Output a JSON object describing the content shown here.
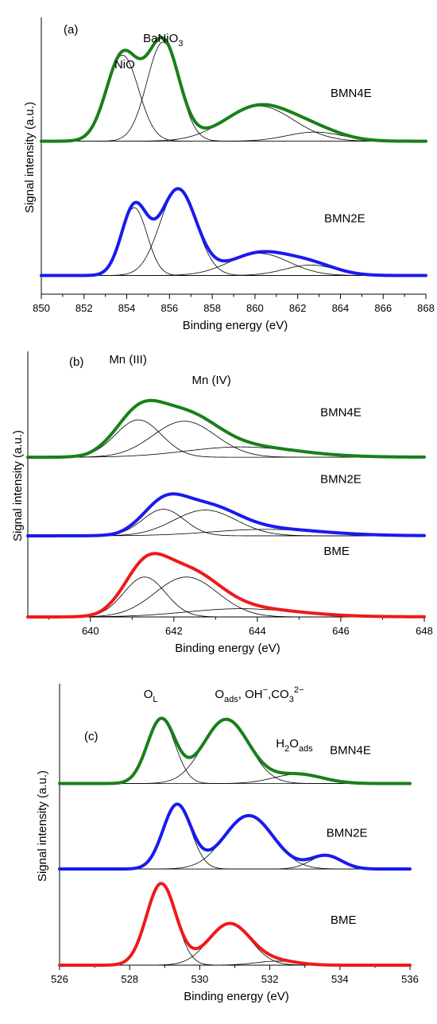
{
  "colors": {
    "BMN4E": "#1a7f1a",
    "BMN2E": "#1a1aee",
    "BME": "#ee1a1a"
  },
  "chart_data": [
    {
      "type": "line",
      "panel_label": "(a)",
      "xlabel": "Binding energy (eV)",
      "ylabel": "Signal intensity (a.u.)",
      "xlim": [
        850,
        868
      ],
      "xticks": [
        850,
        852,
        854,
        856,
        858,
        860,
        862,
        864,
        866,
        868
      ],
      "xtick_labels": [
        "850",
        "852",
        "854",
        "856",
        "858",
        "860",
        "862",
        "864",
        "866",
        "868"
      ],
      "ylim": [
        0,
        1
      ],
      "annotations": [
        {
          "text": "NiO",
          "x": 853.9,
          "y": 0.83
        },
        {
          "text": "BaNiO",
          "sub": "3",
          "x": 855.7,
          "y": 0.93
        }
      ],
      "series": [
        {
          "name": "BMN4E",
          "color": "#1a7f1a",
          "baseline": 0.55,
          "label_pos": {
            "x": 864.5,
            "y": 0.72
          },
          "components": [
            {
              "center": 853.8,
              "height": 0.33,
              "width": 0.75
            },
            {
              "center": 855.7,
              "height": 0.38,
              "width": 0.75
            },
            {
              "center": 860.2,
              "height": 0.135,
              "width": 1.6
            },
            {
              "center": 862.8,
              "height": 0.035,
              "width": 1.3
            }
          ]
        },
        {
          "name": "BMN2E",
          "color": "#1a1aee",
          "baseline": 0.035,
          "label_pos": {
            "x": 864.2,
            "y": 0.24
          },
          "components": [
            {
              "center": 854.35,
              "height": 0.26,
              "width": 0.6
            },
            {
              "center": 856.4,
              "height": 0.33,
              "width": 0.85
            },
            {
              "center": 860.2,
              "height": 0.085,
              "width": 1.4
            },
            {
              "center": 862.6,
              "height": 0.04,
              "width": 1.2
            }
          ]
        }
      ]
    },
    {
      "type": "line",
      "panel_label": "(b)",
      "xlabel": "Binding energy (eV)",
      "ylabel": "Signal intensity (a.u.)",
      "xlim": [
        638.5,
        648
      ],
      "xticks": [
        640,
        642,
        644,
        646,
        648
      ],
      "xtick_labels": [
        "640",
        "642",
        "644",
        "646",
        "648"
      ],
      "ylim": [
        0,
        1
      ],
      "annotations": [
        {
          "text": "Mn (III)",
          "x": 640.9,
          "y": 0.985
        },
        {
          "text": "Mn (IV)",
          "x": 642.9,
          "y": 0.905
        }
      ],
      "series": [
        {
          "name": "BMN4E",
          "color": "#1a7f1a",
          "baseline": 0.62,
          "label_pos": {
            "x": 646.0,
            "y": 0.78
          },
          "components": [
            {
              "center": 641.15,
              "height": 0.145,
              "width": 0.55
            },
            {
              "center": 642.25,
              "height": 0.14,
              "width": 0.75
            },
            {
              "center": 643.6,
              "height": 0.04,
              "width": 1.3
            }
          ],
          "tail": {
            "height": 0.012,
            "decay": 2.5
          }
        },
        {
          "name": "BMN2E",
          "color": "#1a1aee",
          "baseline": 0.315,
          "label_pos": {
            "x": 646.0,
            "y": 0.52
          },
          "components": [
            {
              "center": 641.75,
              "height": 0.103,
              "width": 0.5
            },
            {
              "center": 642.75,
              "height": 0.1,
              "width": 0.75
            },
            {
              "center": 644.2,
              "height": 0.025,
              "width": 1.3
            }
          ],
          "tail": {
            "height": 0.01,
            "decay": 2.5
          }
        },
        {
          "name": "BME",
          "color": "#ee1a1a",
          "baseline": 0.0,
          "label_pos": {
            "x": 645.9,
            "y": 0.24
          },
          "components": [
            {
              "center": 641.3,
              "height": 0.155,
              "width": 0.5
            },
            {
              "center": 642.3,
              "height": 0.155,
              "width": 0.75
            },
            {
              "center": 643.6,
              "height": 0.032,
              "width": 1.3
            }
          ],
          "tail": {
            "height": 0.012,
            "decay": 2.5
          }
        }
      ]
    },
    {
      "type": "line",
      "panel_label": "(c)",
      "xlabel": "Binding energy (eV)",
      "ylabel": "Signal intensity (a.u.)",
      "xlim": [
        526,
        536
      ],
      "xticks": [
        526,
        528,
        530,
        532,
        534,
        536
      ],
      "xtick_labels": [
        "526",
        "528",
        "530",
        "532",
        "534",
        "536"
      ],
      "ylim": [
        0,
        1
      ],
      "annotations": [
        {
          "text": "O",
          "sub": "L",
          "x": 528.6,
          "y": 1.0
        },
        {
          "text": "O",
          "sub": "ads",
          "tail": ", OH",
          "tail_sup": "−",
          "tail2": ",CO",
          "tail2_sub": "3",
          "tail2_sup": "2−",
          "x": 531.7,
          "y": 1.0
        },
        {
          "text": "H",
          "sub": "2",
          "tail": "O",
          "tail_sub": "ads",
          "x": 532.7,
          "y": 0.815
        }
      ],
      "series": [
        {
          "name": "BMN4E",
          "color": "#1a7f1a",
          "baseline": 0.68,
          "label_pos": {
            "x": 534.3,
            "y": 0.79
          },
          "components": [
            {
              "center": 528.9,
              "height": 0.24,
              "width": 0.4
            },
            {
              "center": 530.75,
              "height": 0.24,
              "width": 0.65
            },
            {
              "center": 532.8,
              "height": 0.035,
              "width": 0.7
            }
          ]
        },
        {
          "name": "BMN2E",
          "color": "#1a1aee",
          "baseline": 0.36,
          "label_pos": {
            "x": 534.2,
            "y": 0.48
          },
          "components": [
            {
              "center": 529.35,
              "height": 0.24,
              "width": 0.4
            },
            {
              "center": 531.4,
              "height": 0.2,
              "width": 0.7
            },
            {
              "center": 533.6,
              "height": 0.05,
              "width": 0.45
            }
          ]
        },
        {
          "name": "BME",
          "color": "#ee1a1a",
          "baseline": 0.0,
          "label_pos": {
            "x": 534.1,
            "y": 0.155
          },
          "components": [
            {
              "center": 528.9,
              "height": 0.305,
              "width": 0.42
            },
            {
              "center": 530.85,
              "height": 0.155,
              "width": 0.6
            },
            {
              "center": 532.2,
              "height": 0.015,
              "width": 0.6
            }
          ]
        }
      ]
    }
  ]
}
